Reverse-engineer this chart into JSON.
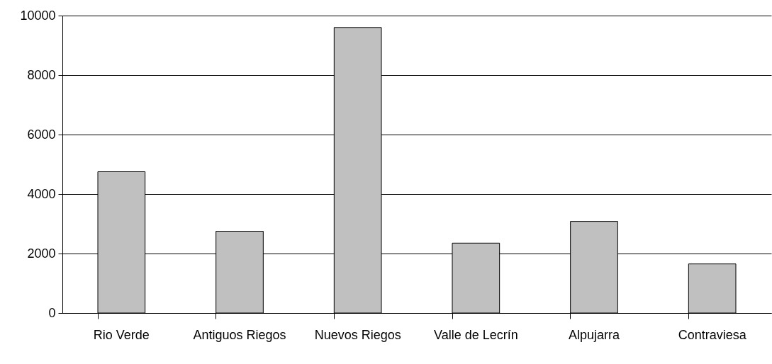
{
  "chart_data": {
    "type": "bar",
    "categories": [
      "Rio Verde",
      "Antiguos Riegos",
      "Nuevos Riegos",
      "Valle de Lecrín",
      "Alpujarra",
      "Contraviesa"
    ],
    "values": [
      4750,
      2750,
      9600,
      2350,
      3080,
      1650
    ],
    "color": "#c0c0c0",
    "ylim": [
      0,
      10000
    ],
    "yticks": [
      0,
      2000,
      4000,
      6000,
      8000,
      10000
    ],
    "grid": "y"
  }
}
